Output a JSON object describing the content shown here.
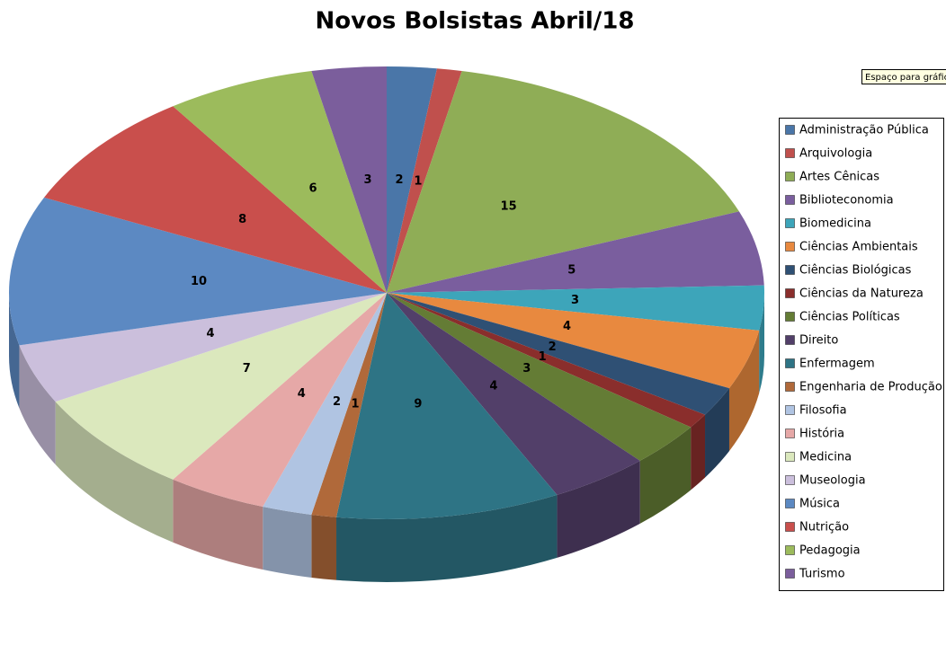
{
  "chart_data": {
    "type": "pie",
    "title": "Novos Bolsistas Abril/18",
    "annotation": "Espaço para gráfic",
    "categories": [
      "Administração Pública",
      "Arquivologia",
      "Artes Cênicas",
      "Biblioteconomia",
      "Biomedicina",
      "Ciências Ambientais",
      "Ciências Biológicas",
      "Ciências da Natureza",
      "Ciências Políticas",
      "Direito",
      "Enfermagem",
      "Engenharia de Produção",
      "Filosofia",
      "História",
      "Medicina",
      "Museologia",
      "Música",
      "Nutrição",
      "Pedagogia",
      "Turismo"
    ],
    "values": [
      2,
      1,
      15,
      5,
      3,
      4,
      2,
      1,
      3,
      4,
      9,
      1,
      2,
      4,
      7,
      4,
      10,
      8,
      6,
      3
    ],
    "colors": [
      "#4a76a8",
      "#c0504d",
      "#8fad56",
      "#7a5e9e",
      "#3da5ba",
      "#e8893f",
      "#2f5074",
      "#8a2e2c",
      "#647c35",
      "#523f69",
      "#2e7485",
      "#b0693a",
      "#b0c4e2",
      "#e6a8a7",
      "#dbe8bd",
      "#cbbfdc",
      "#5c89c2",
      "#c94f4c",
      "#9cbb5c",
      "#7b5e9c"
    ],
    "legend": "right"
  }
}
